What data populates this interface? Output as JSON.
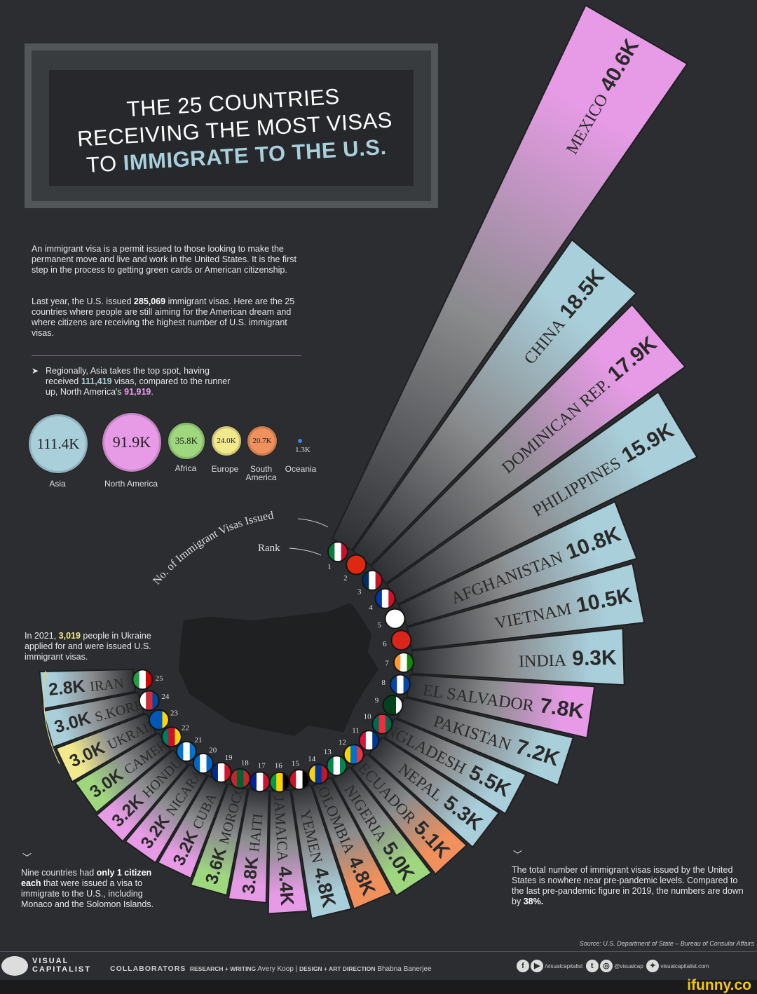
{
  "title": {
    "line1": "THE 25 COUNTRIES",
    "line2": "RECEIVING THE MOST VISAS",
    "line3a": "TO ",
    "line3b": "IMMIGRATE TO THE U.S."
  },
  "intro": {
    "p1": "An immigrant visa is a permit issued to those looking to make the permanent move and live and work in the United States. It is the first step in the process to getting green cards or American citizenship.",
    "p2a": "Last year, the U.S. issued ",
    "p2b": "285,069",
    "p2c": " immigrant visas. Here are the 25 countries where people are still aiming for the American dream and where citizens are receiving the highest number of U.S. immigrant visas."
  },
  "regional": {
    "a": "Regionally, Asia takes the top spot, having received ",
    "b": "111,419",
    "c": " visas, compared to the runner up, North America's ",
    "d": "91,919",
    "e": "."
  },
  "regions": [
    {
      "name": "Asia",
      "value_label": "111.4K",
      "value": 111.4,
      "color": "#a9cfdb"
    },
    {
      "name": "North America",
      "value_label": "91.9K",
      "value": 91.9,
      "color": "#e79be6"
    },
    {
      "name": "Africa",
      "value_label": "35.8K",
      "value": 35.8,
      "color": "#9fd77f"
    },
    {
      "name": "Europe",
      "value_label": "24.0K",
      "value": 24.0,
      "color": "#f2e98c"
    },
    {
      "name": "South America",
      "value_label": "20.7K",
      "value": 20.7,
      "color": "#f0905c"
    },
    {
      "name": "Oceania",
      "value_label": "1.3K",
      "value": 1.3,
      "color": "#4a7fe0"
    }
  ],
  "annotations": {
    "visas_label": "No. of Immigrant Visas Issued",
    "rank_label": "Rank",
    "ukraine_a": "In 2021, ",
    "ukraine_b": "3,019",
    "ukraine_c": " people in Ukraine applied for and were issued U.S. immigrant visas.",
    "nine_a": "Nine countries had ",
    "nine_b": "only 1 citizen each",
    "nine_c": " that were issued a visa to immigrate to the U.S., including Monaco and the Solomon Islands.",
    "total_a": "The total number of immigrant visas issued by the United States is nowhere near pre-pandemic levels. Compared to the last pre-pandemic figure in 2019, the numbers are down by ",
    "total_b": "38%."
  },
  "chart_data": {
    "type": "bar",
    "layout": "radial",
    "title": "THE 25 COUNTRIES RECEIVING THE MOST VISAS TO IMMIGRATE TO THE U.S.",
    "unit": "thousand visas",
    "categories": [
      "MEXICO",
      "CHINA",
      "DOMINICAN REP.",
      "PHILIPPINES",
      "AFGHANISTAN",
      "VIETNAM",
      "INDIA",
      "EL SALVADOR",
      "PAKISTAN",
      "BANGLADESH",
      "NEPAL",
      "ECUADOR",
      "NIGERIA",
      "COLOMBIA",
      "YEMEN",
      "JAMAICA",
      "HAITI",
      "MOROCCO",
      "CUBA",
      "NICARAGUA",
      "HONDURAS",
      "CAMEROON",
      "UKRAINE",
      "S.KOREA",
      "IRAN"
    ],
    "values": [
      40.6,
      18.5,
      17.9,
      15.9,
      10.8,
      10.5,
      9.3,
      7.8,
      7.2,
      5.5,
      5.3,
      5.1,
      5.0,
      4.8,
      4.8,
      4.4,
      3.8,
      3.6,
      3.2,
      3.2,
      3.2,
      3.0,
      3.0,
      3.0,
      2.8
    ],
    "value_labels": [
      "40.6K",
      "18.5K",
      "17.9K",
      "15.9K",
      "10.8K",
      "10.5K",
      "9.3K",
      "7.8K",
      "7.2K",
      "5.5K",
      "5.3K",
      "5.1K",
      "5.0K",
      "4.8K",
      "4.8K",
      "4.4K",
      "3.8K",
      "3.6K",
      "3.2K",
      "3.2K",
      "3.2K",
      "3.0K",
      "3.0K",
      "3.0K",
      "2.8K"
    ],
    "ranks": [
      "1",
      "2",
      "3",
      "4",
      "5",
      "6",
      "7",
      "8",
      "9",
      "10",
      "11",
      "12",
      "13",
      "14",
      "15",
      "16",
      "17",
      "18",
      "19",
      "20",
      "21",
      "22",
      "23",
      "24",
      "25"
    ],
    "region_colors": [
      "#e79be6",
      "#a9cfdb",
      "#e79be6",
      "#a9cfdb",
      "#a9cfdb",
      "#a9cfdb",
      "#a9cfdb",
      "#e79be6",
      "#a9cfdb",
      "#a9cfdb",
      "#a9cfdb",
      "#f0905c",
      "#9fd77f",
      "#f0905c",
      "#a9cfdb",
      "#e79be6",
      "#e79be6",
      "#9fd77f",
      "#e79be6",
      "#e79be6",
      "#e79be6",
      "#9fd77f",
      "#f2e98c",
      "#a9cfdb",
      "#a9cfdb"
    ],
    "flag_colors": [
      [
        "#0b7a3e",
        "#ffffff",
        "#c8102e"
      ],
      [
        "#de2910",
        "#de2910",
        "#de2910"
      ],
      [
        "#002d62",
        "#ffffff",
        "#ce1126"
      ],
      [
        "#0038a8",
        "#ffffff",
        "#ce1126"
      ],
      [
        "#ffffff",
        "#ffffff",
        "#ffffff"
      ],
      [
        "#da251d",
        "#da251d",
        "#da251d"
      ],
      [
        "#ff9933",
        "#ffffff",
        "#138808"
      ],
      [
        "#0047ab",
        "#ffffff",
        "#0047ab"
      ],
      [
        "#01411c",
        "#01411c",
        "#ffffff"
      ],
      [
        "#006a4e",
        "#f42a41",
        "#006a4e"
      ],
      [
        "#dc143c",
        "#ffffff",
        "#003893"
      ],
      [
        "#ffd100",
        "#0072ce",
        "#ef3340"
      ],
      [
        "#008751",
        "#ffffff",
        "#008751"
      ],
      [
        "#fcd116",
        "#003893",
        "#ce1126"
      ],
      [
        "#ce1126",
        "#ffffff",
        "#000000"
      ],
      [
        "#009b3a",
        "#fed100",
        "#000000"
      ],
      [
        "#00209f",
        "#ffffff",
        "#d21034"
      ],
      [
        "#c1272d",
        "#006233",
        "#c1272d"
      ],
      [
        "#002a8f",
        "#ffffff",
        "#cf142b"
      ],
      [
        "#0067c6",
        "#ffffff",
        "#0067c6"
      ],
      [
        "#0073cf",
        "#ffffff",
        "#0073cf"
      ],
      [
        "#007a5e",
        "#ce1126",
        "#fcd116"
      ],
      [
        "#0057b7",
        "#0057b7",
        "#ffd700"
      ],
      [
        "#ffffff",
        "#cd2e3a",
        "#0047a0"
      ],
      [
        "#239f40",
        "#ffffff",
        "#da0000"
      ]
    ]
  },
  "footer": {
    "source": "Source: U.S. Department of State – Bureau of Consular Affairs",
    "brand_top": "VISUAL",
    "brand_bottom": "CAPITALIST",
    "collaborators": "COLLABORATORS",
    "research_label": "RESEARCH + WRITING",
    "research_name": "Avery Koop",
    "separator": "|",
    "design_label": "DESIGN + ART DIRECTION",
    "design_name": "Bhabna Banerjee",
    "handle1": "/visualcapitalist",
    "handle2": "@visualcap",
    "website": "visualcapitalist.com",
    "watermark": "ifunny.co"
  }
}
